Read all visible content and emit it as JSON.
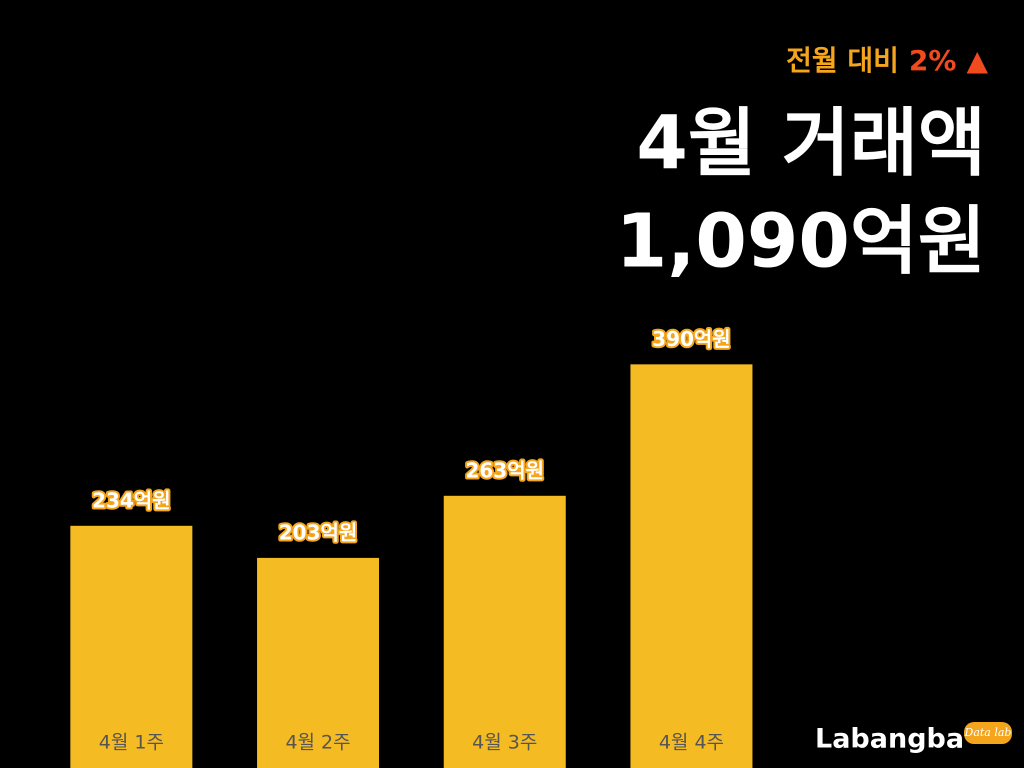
{
  "chart_data": {
    "type": "bar",
    "comparison_label": "전월 대비",
    "change": "2%",
    "change_arrow": "▲",
    "title": "4월 거래액",
    "subtitle": "1,090억원",
    "categories": [
      "4월 1주",
      "4월 2주",
      "4월 3주",
      "4월 4주"
    ],
    "values": [
      234,
      203,
      263,
      390
    ],
    "value_labels": [
      "234억원",
      "203억원",
      "263억원",
      "390억원"
    ],
    "color": "#f4bb22",
    "ylim": [
      0,
      400
    ],
    "brand": "Labangba",
    "brand_tag": "Data lab"
  }
}
